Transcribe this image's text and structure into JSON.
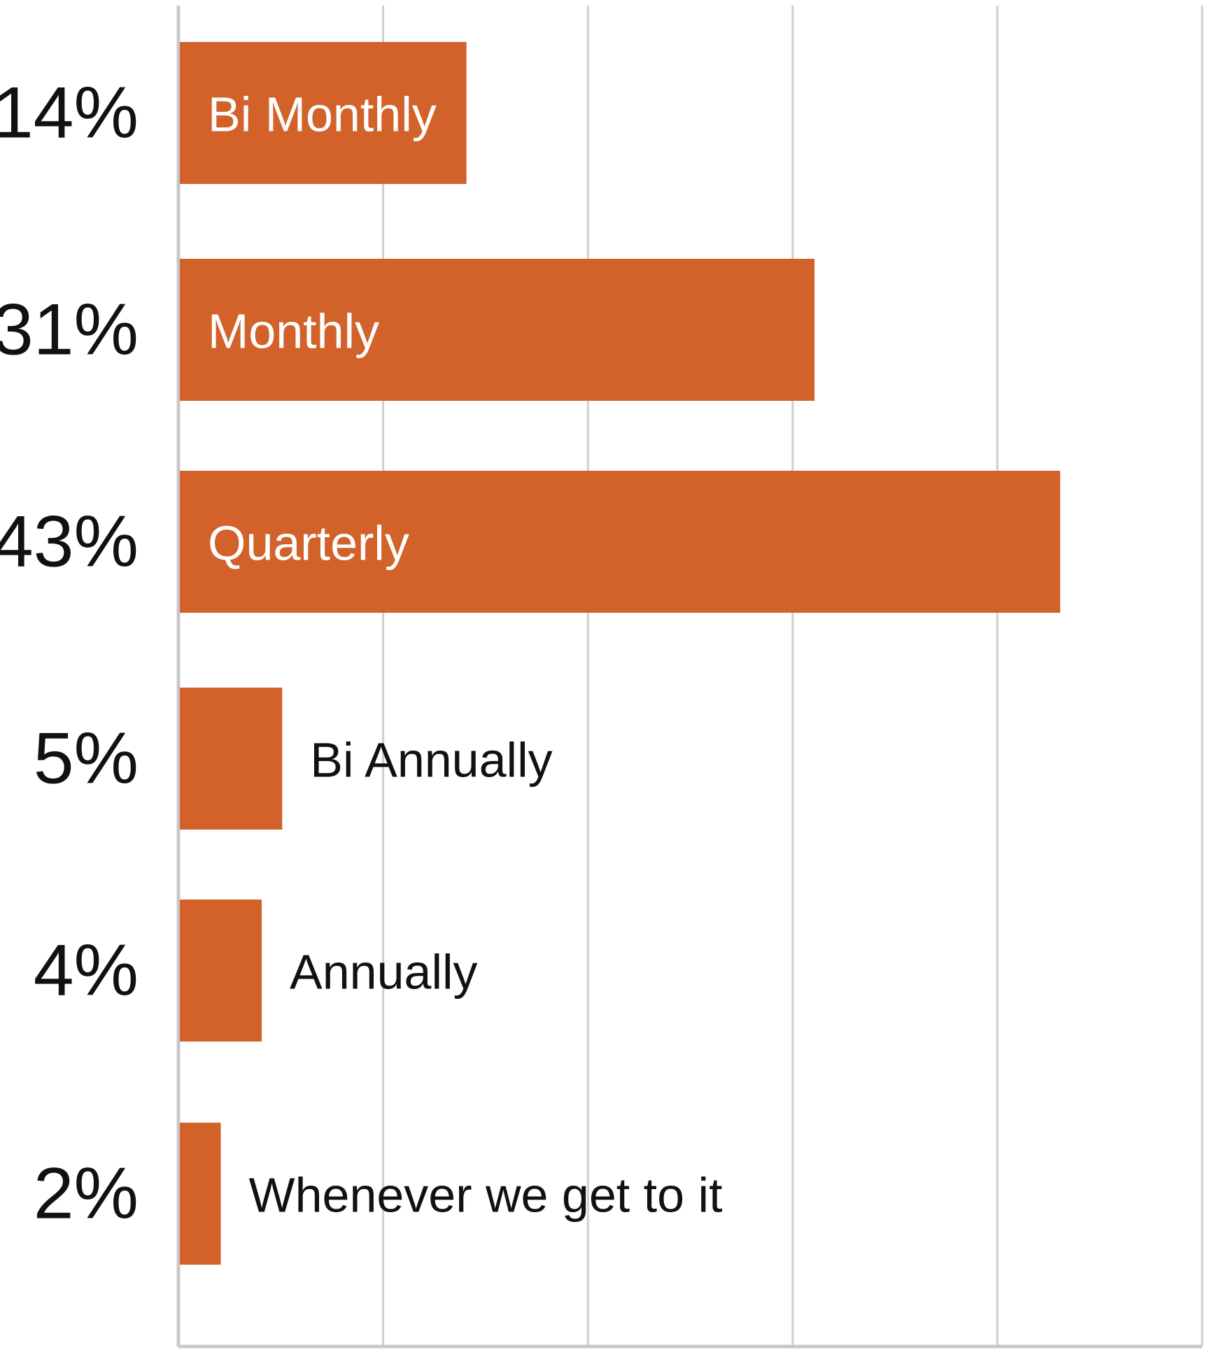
{
  "chart_data": {
    "type": "bar",
    "orientation": "horizontal",
    "title": "",
    "xlabel": "",
    "ylabel": "",
    "categories": [
      "Bi Monthly",
      "Monthly",
      "Quarterly",
      "Bi Annually",
      "Annually",
      "Whenever we get to it"
    ],
    "values": [
      14,
      31,
      43,
      5,
      4,
      2
    ],
    "value_labels": [
      "14%",
      "31%",
      "43%",
      "5%",
      "4%",
      "2%"
    ],
    "xlim": [
      0,
      50
    ],
    "grid": true,
    "legend": "none",
    "bar_color": "#d2612a",
    "label_color_inside": "#ffffff",
    "label_color_outside": "#111111"
  }
}
